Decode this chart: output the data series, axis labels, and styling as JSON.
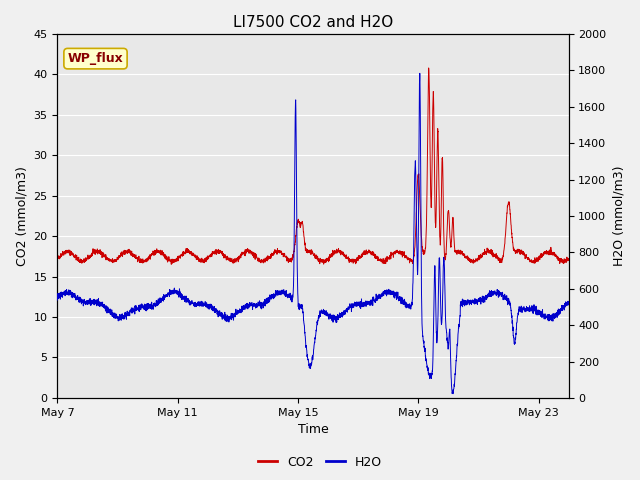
{
  "title": "LI7500 CO2 and H2O",
  "xlabel": "Time",
  "ylabel_left": "CO2 (mmol/m3)",
  "ylabel_right": "H2O (mmol/m3)",
  "xlim_days": [
    0,
    17
  ],
  "ylim_left": [
    0,
    45
  ],
  "ylim_right": [
    0,
    2000
  ],
  "yticks_left": [
    0,
    5,
    10,
    15,
    20,
    25,
    30,
    35,
    40,
    45
  ],
  "yticks_right": [
    0,
    200,
    400,
    600,
    800,
    1000,
    1200,
    1400,
    1600,
    1800,
    2000
  ],
  "xtick_labels": [
    "May 7",
    "May 11",
    "May 15",
    "May 19",
    "May 23"
  ],
  "xtick_positions": [
    0,
    4,
    8,
    12,
    16
  ],
  "co2_color": "#cc0000",
  "h2o_color": "#0000cc",
  "plot_bg_color": "#e8e8e8",
  "fig_bg_color": "#f0f0f0",
  "grid_color": "#ffffff",
  "annotation_text": "WP_flux",
  "annotation_bg": "#ffffcc",
  "annotation_border": "#ccaa00",
  "legend_co2_label": "CO2",
  "legend_h2o_label": "H2O",
  "title_fontsize": 11,
  "axis_fontsize": 9,
  "tick_fontsize": 8,
  "legend_fontsize": 9
}
